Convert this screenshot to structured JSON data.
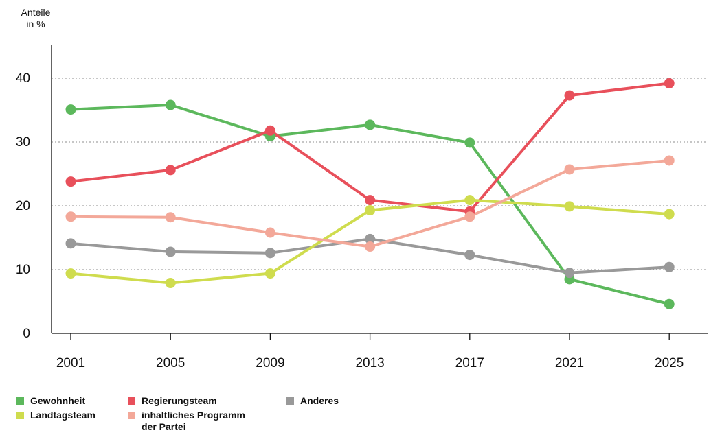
{
  "unit_label": [
    "Anteile",
    "in %"
  ],
  "chart_data": {
    "type": "line",
    "title": "",
    "xlabel": "",
    "ylabel": "Anteile in %",
    "x": [
      "2001",
      "2005",
      "2009",
      "2013",
      "2017",
      "2021",
      "2025"
    ],
    "ylim": [
      0,
      45
    ],
    "yticks": [
      0,
      10,
      20,
      30,
      40
    ],
    "grid": "horizontal dotted",
    "legend_position": "bottom-left",
    "series": [
      {
        "name": "Gewohnheit",
        "color": "#5cb85c",
        "values": [
          35.1,
          35.8,
          30.9,
          32.7,
          29.9,
          8.5,
          4.6
        ]
      },
      {
        "name": "Regierungsteam",
        "color": "#e8505b",
        "values": [
          23.8,
          25.6,
          31.8,
          20.9,
          19.1,
          37.3,
          39.2
        ]
      },
      {
        "name": "Anderes",
        "color": "#999999",
        "values": [
          14.1,
          12.8,
          12.6,
          14.8,
          12.3,
          9.5,
          10.4
        ]
      },
      {
        "name": "Landtagsteam",
        "color": "#cfdc4e",
        "values": [
          9.4,
          7.9,
          9.4,
          19.3,
          20.9,
          19.9,
          18.7
        ]
      },
      {
        "name": "inhaltliches Programm der Partei",
        "color": "#f3a899",
        "values": [
          18.3,
          18.2,
          15.8,
          13.6,
          18.3,
          25.7,
          27.1
        ]
      }
    ]
  },
  "legend": [
    {
      "label": [
        "Gewohnheit"
      ],
      "color": "#5cb85c"
    },
    {
      "label": [
        "Regierungsteam"
      ],
      "color": "#e8505b"
    },
    {
      "label": [
        "Anderes"
      ],
      "color": "#999999"
    },
    {
      "label": [
        "Landtagsteam"
      ],
      "color": "#cfdc4e"
    },
    {
      "label": [
        "inhaltliches Programm",
        "der Partei"
      ],
      "color": "#f3a899"
    }
  ]
}
